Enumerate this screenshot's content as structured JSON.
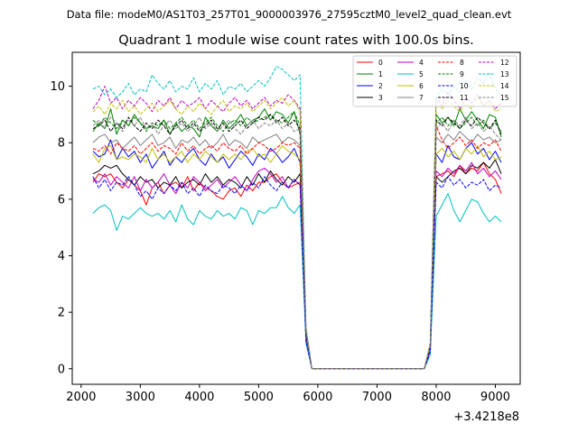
{
  "chart_data": {
    "type": "line",
    "suptitle": "Data file: modeM0/AS1T03_257T01_9000003976_27595cztM0_level2_quad_clean.evt",
    "title": "Quadrant 1 module wise count rates with 100.0s bins.",
    "xlabel": "",
    "ylabel": "",
    "x_offset_label": "+3.4218e8",
    "xlim": [
      1850,
      9420
    ],
    "ylim": [
      -0.55,
      11.2
    ],
    "x_ticks": [
      2000,
      3000,
      4000,
      5000,
      6000,
      7000,
      8000,
      9000
    ],
    "y_ticks": [
      0,
      2,
      4,
      6,
      8,
      10
    ],
    "x_tick_labels": [
      "2000",
      "3000",
      "4000",
      "5000",
      "6000",
      "7000",
      "8000",
      "9000"
    ],
    "y_tick_labels": [
      "0",
      "2",
      "4",
      "6",
      "8",
      "10"
    ],
    "x": [
      2200,
      2300,
      2400,
      2500,
      2600,
      2700,
      2800,
      2900,
      3000,
      3100,
      3200,
      3300,
      3400,
      3500,
      3600,
      3700,
      3800,
      3900,
      4000,
      4100,
      4200,
      4300,
      4400,
      4500,
      4600,
      4700,
      4800,
      4900,
      5000,
      5100,
      5200,
      5300,
      5400,
      5500,
      5600,
      5700,
      5800,
      5900,
      6000,
      6100,
      6200,
      6300,
      6400,
      6500,
      6600,
      6700,
      6800,
      6900,
      7000,
      7100,
      7200,
      7300,
      7400,
      7500,
      7600,
      7700,
      7800,
      7900,
      8000,
      8100,
      8200,
      8300,
      8400,
      8500,
      8600,
      8700,
      8800,
      8900,
      9000,
      9100
    ],
    "legend_location": "upper right",
    "series": [
      {
        "name": "0",
        "color": "#ff0000",
        "dash": "solid",
        "values": [
          6.6,
          6.9,
          6.8,
          6.9,
          6.6,
          6.4,
          6.7,
          6.5,
          6.3,
          5.8,
          6.4,
          6.6,
          6.2,
          6.5,
          6.6,
          6.4,
          6.8,
          6.3,
          6.6,
          6.4,
          6.3,
          6.1,
          6.0,
          6.3,
          6.4,
          6.1,
          6.5,
          6.3,
          6.6,
          6.6,
          6.8,
          6.9,
          6.6,
          6.4,
          6.5,
          6.6,
          1.0,
          0,
          0,
          0,
          0,
          0,
          0,
          0,
          0,
          0,
          0,
          0,
          0,
          0,
          0,
          0,
          0,
          0,
          0,
          0,
          0,
          0.7,
          6.8,
          6.9,
          7.0,
          6.8,
          7.2,
          6.9,
          7.1,
          7.0,
          7.3,
          6.9,
          6.7,
          6.2
        ]
      },
      {
        "name": "1",
        "color": "#008000",
        "dash": "solid",
        "values": [
          8.4,
          8.7,
          8.5,
          9.2,
          8.3,
          8.8,
          8.6,
          9.0,
          8.7,
          8.5,
          8.6,
          8.5,
          8.8,
          8.3,
          8.7,
          8.4,
          8.6,
          8.5,
          8.2,
          8.9,
          8.6,
          8.4,
          8.8,
          8.5,
          8.7,
          9.0,
          8.6,
          8.8,
          8.9,
          9.2,
          8.8,
          9.1,
          9.0,
          8.7,
          9.1,
          8.3,
          1.3,
          0,
          0,
          0,
          0,
          0,
          0,
          0,
          0,
          0,
          0,
          0,
          0,
          0,
          0,
          0,
          0,
          0,
          0,
          0,
          0,
          0.8,
          9.0,
          8.7,
          8.9,
          8.6,
          9.2,
          8.8,
          9.1,
          8.8,
          8.5,
          9.0,
          8.9,
          8.2
        ]
      },
      {
        "name": "2",
        "color": "#0000ff",
        "dash": "solid",
        "values": [
          7.7,
          7.5,
          7.6,
          8.1,
          7.4,
          7.8,
          7.5,
          7.7,
          7.3,
          7.6,
          7.1,
          7.4,
          7.7,
          7.2,
          7.5,
          7.3,
          7.6,
          7.8,
          7.4,
          7.2,
          7.6,
          7.3,
          7.5,
          7.1,
          7.4,
          7.7,
          7.5,
          7.2,
          7.6,
          7.4,
          7.8,
          7.6,
          7.3,
          7.5,
          7.8,
          7.3,
          1.2,
          0,
          0,
          0,
          0,
          0,
          0,
          0,
          0,
          0,
          0,
          0,
          0,
          0,
          0,
          0,
          0,
          0,
          0,
          0,
          0,
          0.7,
          7.6,
          7.3,
          7.9,
          7.5,
          7.4,
          7.8,
          8.0,
          7.6,
          7.8,
          7.4,
          7.7,
          7.3
        ]
      },
      {
        "name": "3",
        "color": "#000000",
        "dash": "solid",
        "values": [
          6.9,
          7.0,
          7.2,
          7.1,
          7.2,
          6.9,
          6.7,
          6.5,
          6.8,
          6.6,
          6.7,
          6.4,
          6.6,
          6.5,
          6.8,
          6.4,
          6.6,
          6.7,
          6.5,
          6.9,
          6.6,
          6.8,
          6.5,
          6.7,
          6.6,
          6.4,
          6.8,
          6.5,
          6.9,
          6.6,
          7.0,
          6.7,
          6.5,
          6.8,
          6.6,
          6.9,
          1.1,
          0,
          0,
          0,
          0,
          0,
          0,
          0,
          0,
          0,
          0,
          0,
          0,
          0,
          0,
          0,
          0,
          0,
          0,
          0,
          0,
          0.7,
          6.8,
          6.6,
          6.8,
          7.0,
          7.1,
          6.9,
          7.2,
          7.1,
          7.3,
          7.1,
          7.4,
          6.9
        ]
      },
      {
        "name": "4",
        "color": "#bf00bf",
        "dash": "solid",
        "values": [
          6.7,
          6.6,
          6.9,
          6.5,
          6.8,
          6.6,
          6.4,
          6.8,
          6.3,
          6.7,
          6.4,
          6.6,
          6.9,
          6.5,
          6.2,
          6.6,
          6.4,
          6.8,
          6.6,
          6.3,
          6.5,
          6.7,
          6.4,
          6.6,
          6.8,
          6.5,
          6.3,
          6.7,
          7.0,
          7.1,
          6.9,
          6.6,
          6.8,
          6.4,
          6.7,
          6.5,
          1.1,
          0,
          0,
          0,
          0,
          0,
          0,
          0,
          0,
          0,
          0,
          0,
          0,
          0,
          0,
          0,
          0,
          0,
          0,
          0,
          0,
          0.7,
          7.0,
          6.8,
          7.1,
          6.9,
          7.2,
          7.0,
          7.3,
          6.9,
          7.1,
          6.8,
          7.0,
          6.7
        ]
      },
      {
        "name": "5",
        "color": "#00bfbf",
        "dash": "solid",
        "values": [
          5.5,
          5.7,
          5.8,
          5.6,
          4.9,
          5.4,
          5.3,
          5.5,
          5.7,
          5.5,
          5.4,
          5.5,
          5.3,
          5.6,
          5.2,
          5.8,
          5.3,
          5.1,
          5.6,
          5.4,
          5.3,
          5.6,
          5.4,
          5.5,
          5.3,
          5.7,
          5.6,
          5.1,
          5.6,
          5.5,
          5.7,
          5.7,
          6.1,
          5.7,
          5.5,
          5.8,
          0.9,
          0,
          0,
          0,
          0,
          0,
          0,
          0,
          0,
          0,
          0,
          0,
          0,
          0,
          0,
          0,
          0,
          0,
          0,
          0,
          0,
          0.5,
          5.4,
          5.8,
          6.2,
          5.6,
          5.2,
          5.6,
          6.0,
          5.9,
          5.5,
          5.2,
          5.4,
          5.2
        ]
      },
      {
        "name": "6",
        "color": "#bfbf00",
        "dash": "solid",
        "values": [
          7.6,
          7.3,
          7.8,
          7.9,
          7.4,
          7.5,
          7.4,
          7.6,
          7.5,
          7.3,
          7.8,
          7.4,
          7.6,
          7.3,
          7.5,
          7.7,
          7.3,
          7.6,
          7.4,
          7.7,
          7.5,
          7.3,
          7.6,
          7.4,
          7.6,
          7.4,
          7.7,
          7.8,
          7.5,
          7.6,
          7.3,
          7.6,
          7.9,
          7.7,
          7.6,
          7.4,
          1.2,
          0,
          0,
          0,
          0,
          0,
          0,
          0,
          0,
          0,
          0,
          0,
          0,
          0,
          0,
          0,
          0,
          0,
          0,
          0,
          0,
          0.8,
          7.6,
          7.8,
          7.5,
          7.7,
          7.4,
          7.8,
          7.6,
          7.9,
          7.5,
          7.7,
          7.4,
          7.5
        ]
      },
      {
        "name": "7",
        "color": "#808080",
        "dash": "solid",
        "values": [
          8.0,
          8.2,
          8.3,
          8.0,
          8.1,
          7.8,
          8.0,
          8.2,
          7.9,
          8.1,
          8.3,
          7.9,
          8.0,
          8.2,
          7.8,
          8.1,
          8.0,
          8.2,
          7.9,
          8.1,
          7.8,
          8.0,
          8.3,
          7.9,
          8.1,
          8.0,
          7.8,
          8.2,
          8.0,
          8.1,
          8.2,
          8.3,
          8.0,
          8.2,
          8.1,
          7.9,
          1.3,
          0,
          0,
          0,
          0,
          0,
          0,
          0,
          0,
          0,
          0,
          0,
          0,
          0,
          0,
          0,
          0,
          0,
          0,
          0,
          0,
          0.8,
          8.2,
          8.0,
          8.3,
          8.1,
          8.4,
          8.2,
          8.0,
          8.3,
          8.1,
          8.2,
          8.0,
          8.1
        ]
      },
      {
        "name": "8",
        "color": "#ff0000",
        "dash": "dashed",
        "values": [
          7.8,
          7.7,
          7.9,
          7.6,
          8.0,
          7.8,
          7.7,
          7.9,
          7.6,
          7.8,
          8.0,
          7.7,
          7.9,
          7.8,
          7.6,
          8.0,
          7.7,
          7.9,
          7.6,
          7.8,
          7.9,
          7.7,
          8.0,
          7.8,
          7.7,
          7.9,
          7.6,
          7.8,
          8.0,
          7.9,
          7.7,
          7.8,
          8.0,
          7.9,
          8.0,
          7.8,
          1.2,
          0,
          0,
          0,
          0,
          0,
          0,
          0,
          0,
          0,
          0,
          0,
          0,
          0,
          0,
          0,
          0,
          0,
          0,
          0,
          0,
          0.8,
          8.6,
          8.1,
          7.8,
          8.0,
          8.2,
          7.9,
          8.1,
          7.8,
          8.0,
          7.9,
          8.1,
          7.7
        ]
      },
      {
        "name": "9",
        "color": "#008000",
        "dash": "dashed",
        "values": [
          8.8,
          8.6,
          8.9,
          8.7,
          8.5,
          8.8,
          8.6,
          8.9,
          8.7,
          8.4,
          8.7,
          8.6,
          8.8,
          8.5,
          8.7,
          8.9,
          8.6,
          8.8,
          8.5,
          8.7,
          8.9,
          8.6,
          8.4,
          8.7,
          8.8,
          8.6,
          8.9,
          8.7,
          8.8,
          8.9,
          9.0,
          8.8,
          8.7,
          8.9,
          9.1,
          8.6,
          1.3,
          0,
          0,
          0,
          0,
          0,
          0,
          0,
          0,
          0,
          0,
          0,
          0,
          0,
          0,
          0,
          0,
          0,
          0,
          0,
          0,
          0.8,
          8.7,
          8.9,
          8.6,
          8.8,
          8.5,
          8.7,
          8.9,
          8.6,
          8.8,
          8.5,
          8.7,
          8.4
        ]
      },
      {
        "name": "10",
        "color": "#0000ff",
        "dash": "dashed",
        "values": [
          6.8,
          6.4,
          6.7,
          6.3,
          6.6,
          6.5,
          6.8,
          6.5,
          6.1,
          6.3,
          6.0,
          6.4,
          6.2,
          6.5,
          6.3,
          6.6,
          6.2,
          6.4,
          6.1,
          6.5,
          6.3,
          6.2,
          6.5,
          6.4,
          6.2,
          6.5,
          6.3,
          6.6,
          6.4,
          6.8,
          6.5,
          6.3,
          6.6,
          6.4,
          6.7,
          6.5,
          1.0,
          0,
          0,
          0,
          0,
          0,
          0,
          0,
          0,
          0,
          0,
          0,
          0,
          0,
          0,
          0,
          0,
          0,
          0,
          0,
          0,
          0.6,
          6.6,
          6.4,
          6.8,
          6.5,
          6.7,
          6.4,
          6.6,
          6.5,
          6.7,
          6.3,
          6.5,
          6.4
        ]
      },
      {
        "name": "11",
        "color": "#000000",
        "dash": "dashed",
        "values": [
          8.5,
          8.6,
          8.8,
          8.4,
          8.7,
          8.5,
          8.9,
          8.6,
          8.4,
          8.7,
          8.5,
          8.8,
          8.6,
          8.3,
          8.6,
          8.8,
          8.5,
          8.7,
          8.4,
          8.6,
          8.8,
          8.5,
          8.7,
          8.4,
          8.6,
          8.8,
          8.5,
          8.7,
          8.9,
          8.8,
          9.0,
          8.7,
          8.9,
          8.6,
          8.8,
          8.5,
          1.3,
          0,
          0,
          0,
          0,
          0,
          0,
          0,
          0,
          0,
          0,
          0,
          0,
          0,
          0,
          0,
          0,
          0,
          0,
          0,
          0,
          0.8,
          8.8,
          8.6,
          8.9,
          8.7,
          8.5,
          8.8,
          8.6,
          8.9,
          8.7,
          8.5,
          8.8,
          8.3
        ]
      },
      {
        "name": "12",
        "color": "#bf00bf",
        "dash": "dashed",
        "values": [
          9.2,
          9.5,
          10.0,
          9.4,
          9.6,
          9.2,
          9.5,
          9.3,
          9.6,
          9.4,
          9.1,
          9.5,
          9.3,
          9.6,
          9.2,
          9.5,
          9.3,
          9.4,
          9.6,
          9.2,
          9.5,
          9.3,
          9.1,
          9.4,
          9.6,
          9.3,
          9.5,
          9.2,
          9.4,
          9.6,
          9.3,
          9.5,
          9.4,
          9.7,
          9.5,
          9.2,
          1.4,
          0,
          0,
          0,
          0,
          0,
          0,
          0,
          0,
          0,
          0,
          0,
          0,
          0,
          0,
          0,
          0,
          0,
          0,
          0,
          0,
          0.9,
          9.6,
          9.3,
          9.8,
          9.5,
          9.2,
          9.6,
          9.4,
          9.7,
          9.3,
          9.5,
          9.2,
          9.4
        ]
      },
      {
        "name": "13",
        "color": "#00bfbf",
        "dash": "dashed",
        "values": [
          9.9,
          10.0,
          9.7,
          9.9,
          9.6,
          9.8,
          10.1,
          9.7,
          9.9,
          9.8,
          10.4,
          10.1,
          9.9,
          10.2,
          9.8,
          10.0,
          9.9,
          10.3,
          9.8,
          10.1,
          9.9,
          10.2,
          9.7,
          10.0,
          9.9,
          10.1,
          9.8,
          10.0,
          10.2,
          10.0,
          10.3,
          10.7,
          10.6,
          10.4,
          10.2,
          10.4,
          1.5,
          0,
          0,
          0,
          0,
          0,
          0,
          0,
          0,
          0,
          0,
          0,
          0,
          0,
          0,
          0,
          0,
          0,
          0,
          0,
          0,
          0.9,
          9.6,
          9.9,
          9.7,
          10.0,
          9.8,
          10.2,
          9.9,
          10.3,
          10.1,
          10.5,
          9.9,
          9.7
        ]
      },
      {
        "name": "14",
        "color": "#bfbf00",
        "dash": "dashed",
        "values": [
          9.1,
          9.3,
          9.0,
          9.4,
          9.2,
          9.5,
          9.1,
          9.3,
          9.0,
          9.2,
          9.4,
          9.1,
          9.3,
          9.5,
          9.2,
          9.0,
          9.3,
          9.1,
          9.4,
          9.2,
          9.0,
          9.3,
          9.5,
          9.1,
          9.3,
          9.2,
          9.4,
          9.1,
          9.3,
          9.5,
          9.2,
          9.4,
          9.6,
          9.3,
          9.5,
          9.1,
          1.4,
          0,
          0,
          0,
          0,
          0,
          0,
          0,
          0,
          0,
          0,
          0,
          0,
          0,
          0,
          0,
          0,
          0,
          0,
          0,
          0,
          0.9,
          9.4,
          9.2,
          9.5,
          9.3,
          9.1,
          9.4,
          9.2,
          9.6,
          9.3,
          9.5,
          9.1,
          9.2
        ]
      },
      {
        "name": "15",
        "color": "#808080",
        "dash": "dashed",
        "values": [
          8.6,
          8.8,
          8.5,
          8.9,
          8.7,
          8.4,
          8.8,
          8.6,
          8.9,
          8.5,
          8.7,
          8.3,
          8.6,
          8.8,
          8.5,
          8.7,
          8.4,
          8.6,
          8.9,
          8.5,
          8.7,
          8.4,
          8.6,
          8.8,
          8.5,
          8.3,
          8.6,
          8.8,
          8.5,
          8.7,
          8.6,
          8.8,
          8.5,
          8.7,
          8.4,
          8.5,
          1.3,
          0,
          0,
          0,
          0,
          0,
          0,
          0,
          0,
          0,
          0,
          0,
          0,
          0,
          0,
          0,
          0,
          0,
          0,
          0,
          0,
          0.8,
          8.5,
          8.7,
          8.4,
          8.8,
          8.6,
          8.9,
          8.5,
          8.7,
          8.4,
          8.6,
          8.3,
          8.1
        ]
      }
    ]
  }
}
